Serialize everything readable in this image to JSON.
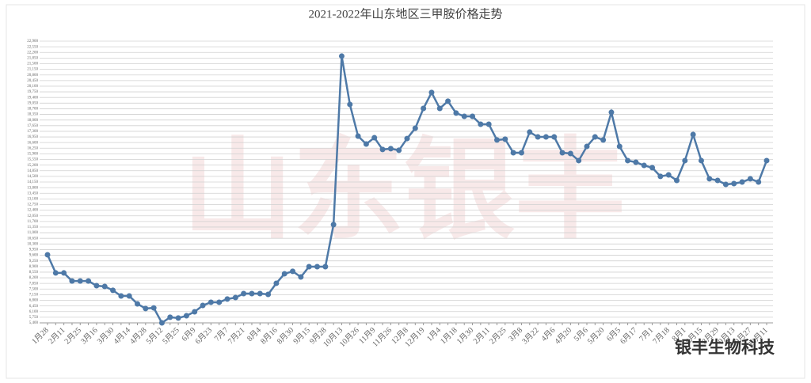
{
  "chart_data": {
    "type": "line",
    "title": "2021-2022年山东地区三甲胺价格走势",
    "watermark": "山东银丰",
    "brand": "银丰生物科技",
    "categories": [
      "1月28",
      null,
      "2月11",
      null,
      "2月25",
      null,
      "3月16",
      null,
      "3月30",
      null,
      "4月14",
      null,
      "4月28",
      null,
      "5月12",
      null,
      "5月25",
      null,
      "6月9",
      null,
      "6月23",
      null,
      "7月7",
      null,
      "7月21",
      null,
      "8月4",
      null,
      "8月16",
      null,
      "8月30",
      null,
      "9月15",
      null,
      "9月28",
      null,
      "10月13",
      null,
      "10月26",
      null,
      "11月9",
      null,
      "11月26",
      null,
      "12月8",
      null,
      "12月19",
      null,
      "1月4",
      null,
      "1月18",
      null,
      "1月30",
      null,
      "2月11",
      null,
      "2月25",
      null,
      "3月8",
      null,
      "3月22",
      null,
      "4月6",
      null,
      "4月20",
      null,
      "5月6",
      null,
      "5月20",
      null,
      "6月5",
      null,
      "6月17",
      null,
      "7月1",
      null,
      "7月18",
      null,
      "8月1",
      null,
      "8月15",
      null,
      "8月29",
      null,
      "9月13",
      null,
      "9月27",
      null,
      "10月11"
    ],
    "series": [
      {
        "name": "三甲胺",
        "color": "#4e79a7",
        "values": [
          9630,
          8500,
          8500,
          8000,
          8000,
          8000,
          7710,
          7660,
          7420,
          7070,
          7070,
          6580,
          6290,
          6330,
          5400,
          5750,
          5700,
          5840,
          6090,
          6480,
          6680,
          6680,
          6880,
          6970,
          7220,
          7220,
          7220,
          7170,
          7860,
          8450,
          8600,
          8250,
          8890,
          8890,
          8890,
          11500,
          21970,
          18970,
          17000,
          16510,
          16900,
          16170,
          16220,
          16120,
          16850,
          17490,
          18720,
          19710,
          18720,
          19170,
          18430,
          18230,
          18230,
          17740,
          17740,
          16760,
          16810,
          15970,
          15970,
          17250,
          16950,
          16950,
          16950,
          15970,
          15920,
          15480,
          16360,
          16950,
          16760,
          18480,
          16360,
          15480,
          15380,
          15180,
          15040,
          14500,
          14590,
          14250,
          15480,
          17100,
          15480,
          14350,
          14250,
          14000,
          14050,
          14150,
          14350,
          14150,
          15480
        ]
      }
    ],
    "ylim": [
      5400,
      22900
    ],
    "yticks": [
      {
        "value": 5400,
        "label": "5,400"
      },
      {
        "value": 5750,
        "label": "5,750"
      },
      {
        "value": 6100,
        "label": "6,100"
      },
      {
        "value": 6450,
        "label": "6,450"
      },
      {
        "value": 6800,
        "label": "6,800"
      },
      {
        "value": 7150,
        "label": "7,150"
      },
      {
        "value": 7500,
        "label": "7,500"
      },
      {
        "value": 7850,
        "label": "7,850"
      },
      {
        "value": 8200,
        "label": "8,200"
      },
      {
        "value": 8550,
        "label": "8,550"
      },
      {
        "value": 8900,
        "label": "8,900"
      },
      {
        "value": 9250,
        "label": "9,250"
      },
      {
        "value": 9600,
        "label": "9,600"
      },
      {
        "value": 9950,
        "label": "9,950"
      },
      {
        "value": 10300,
        "label": "10,300"
      },
      {
        "value": 10650,
        "label": "10,650"
      },
      {
        "value": 11000,
        "label": "11,000"
      },
      {
        "value": 11350,
        "label": "11,350"
      },
      {
        "value": 11700,
        "label": "11,700"
      },
      {
        "value": 12050,
        "label": "12,050"
      },
      {
        "value": 12400,
        "label": "12,400"
      },
      {
        "value": 12750,
        "label": "12,750"
      },
      {
        "value": 13100,
        "label": "13,100"
      },
      {
        "value": 13450,
        "label": "13,450"
      },
      {
        "value": 13800,
        "label": "13,800"
      },
      {
        "value": 14150,
        "label": "14,150"
      },
      {
        "value": 14500,
        "label": "14,500"
      },
      {
        "value": 14850,
        "label": "14,850"
      },
      {
        "value": 15200,
        "label": "15,200"
      },
      {
        "value": 15550,
        "label": "15,550"
      },
      {
        "value": 15900,
        "label": "15,900"
      },
      {
        "value": 16250,
        "label": "16,250"
      },
      {
        "value": 16600,
        "label": "16,600"
      },
      {
        "value": 16950,
        "label": "16,950"
      },
      {
        "value": 17300,
        "label": "17,300"
      },
      {
        "value": 17650,
        "label": "17,650"
      },
      {
        "value": 18000,
        "label": "18,000"
      },
      {
        "value": 18350,
        "label": "18,350"
      },
      {
        "value": 18700,
        "label": "18,700"
      },
      {
        "value": 19050,
        "label": "19,050"
      },
      {
        "value": 19400,
        "label": "19,400"
      },
      {
        "value": 19750,
        "label": "19,750"
      },
      {
        "value": 20100,
        "label": "20,100"
      },
      {
        "value": 20450,
        "label": "20,450"
      },
      {
        "value": 20800,
        "label": "20,800"
      },
      {
        "value": 21150,
        "label": "21,150"
      },
      {
        "value": 21500,
        "label": "21,500"
      },
      {
        "value": 21850,
        "label": "21,850"
      },
      {
        "value": 22200,
        "label": "22,200"
      },
      {
        "value": 22550,
        "label": "22,550"
      },
      {
        "value": 22900,
        "label": "22,900"
      }
    ],
    "grid": true
  }
}
